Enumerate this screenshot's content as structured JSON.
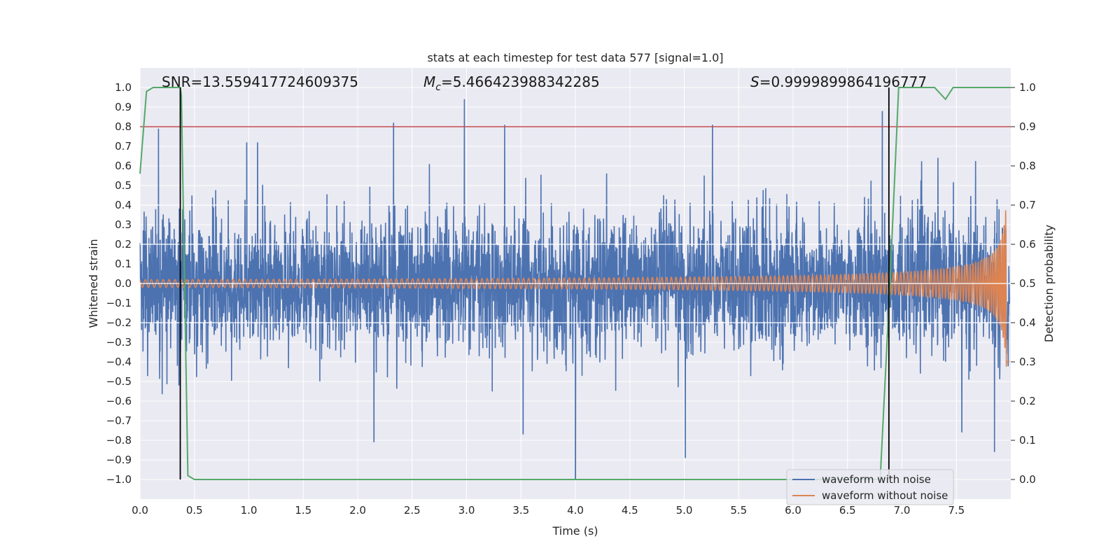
{
  "chart_data": {
    "type": "line",
    "title": "stats at each timestep for test data 577 [signal=1.0]",
    "xlabel": "Time (s)",
    "ylabel": "Whitened strain",
    "y2label": "Detection probability",
    "xlim": [
      0.0,
      8.0
    ],
    "ylim": [
      -1.1,
      1.1
    ],
    "y2lim": [
      -0.05,
      1.05
    ],
    "xticks": [
      "0.0",
      "0.5",
      "1.0",
      "1.5",
      "2.0",
      "2.5",
      "3.0",
      "3.5",
      "4.0",
      "4.5",
      "5.0",
      "5.5",
      "6.0",
      "6.5",
      "7.0",
      "7.5"
    ],
    "yticks": [
      "1.0",
      "0.9",
      "0.8",
      "0.7",
      "0.6",
      "0.5",
      "0.4",
      "0.3",
      "0.2",
      "0.1",
      "0.0",
      "−0.1",
      "−0.2",
      "−0.3",
      "−0.4",
      "−0.5",
      "−0.6",
      "−0.7",
      "−0.8",
      "−0.9",
      "−1.0"
    ],
    "y2ticks": [
      "1.0",
      "0.9",
      "0.8",
      "0.7",
      "0.6",
      "0.5",
      "0.4",
      "0.3",
      "0.2",
      "0.1",
      "0.0"
    ],
    "grid": true,
    "legend_position": "bottom-right",
    "annotations": {
      "snr_label": "SNR=13.559417724609375",
      "mc_label": "M",
      "mc_sub": "c",
      "mc_value": "=5.466423988342285",
      "s_label": "S",
      "s_value": "=0.9999899864196777"
    },
    "series": [
      {
        "name": "waveform with noise",
        "axis": "left",
        "color": "#4c72b0",
        "description_values": {
          "typical_abs_amplitude": 0.3,
          "notable_peaks": [
            {
              "x": 0.17,
              "y": 0.79
            },
            {
              "x": 2.33,
              "y": 0.82
            },
            {
              "x": 2.98,
              "y": 0.94
            },
            {
              "x": 3.35,
              "y": 0.81
            },
            {
              "x": 5.26,
              "y": 0.81
            },
            {
              "x": 6.82,
              "y": 0.88
            },
            {
              "x": 0.98,
              "y": 0.72
            },
            {
              "x": 1.08,
              "y": 0.72
            }
          ],
          "notable_troughs": [
            {
              "x": 4.0,
              "y": -1.0
            },
            {
              "x": 2.15,
              "y": -0.81
            },
            {
              "x": 5.01,
              "y": -0.89
            },
            {
              "x": 7.85,
              "y": -0.86
            },
            {
              "x": 7.55,
              "y": -0.76
            },
            {
              "x": 3.52,
              "y": -0.77
            }
          ]
        }
      },
      {
        "name": "waveform without noise",
        "axis": "left",
        "color": "#dd8452",
        "description_values": {
          "amplitude_at_start": 0.02,
          "amplitude_at_6s": 0.05,
          "amplitude_at_7.5s": 0.12,
          "amplitude_peak_at_7.95s": 0.33,
          "cycles_before_7s": 190
        }
      },
      {
        "name": "detection probability",
        "axis": "right",
        "color": "#55a868",
        "x": [
          0.0,
          0.06,
          0.12,
          0.37,
          0.38,
          0.44,
          0.5,
          6.8,
          6.89,
          6.97,
          7.3,
          7.4,
          7.47,
          8.0
        ],
        "y": [
          0.78,
          0.99,
          1.0,
          1.0,
          0.98,
          0.01,
          0.0,
          0.0,
          0.5,
          1.0,
          1.0,
          0.97,
          1.0,
          1.0
        ]
      }
    ],
    "threshold_line": {
      "axis": "right",
      "y": 0.9,
      "color": "#c44e52"
    },
    "vertical_lines": [
      {
        "x": 0.37,
        "color": "#000000"
      },
      {
        "x": 6.88,
        "color": "#000000"
      }
    ]
  }
}
